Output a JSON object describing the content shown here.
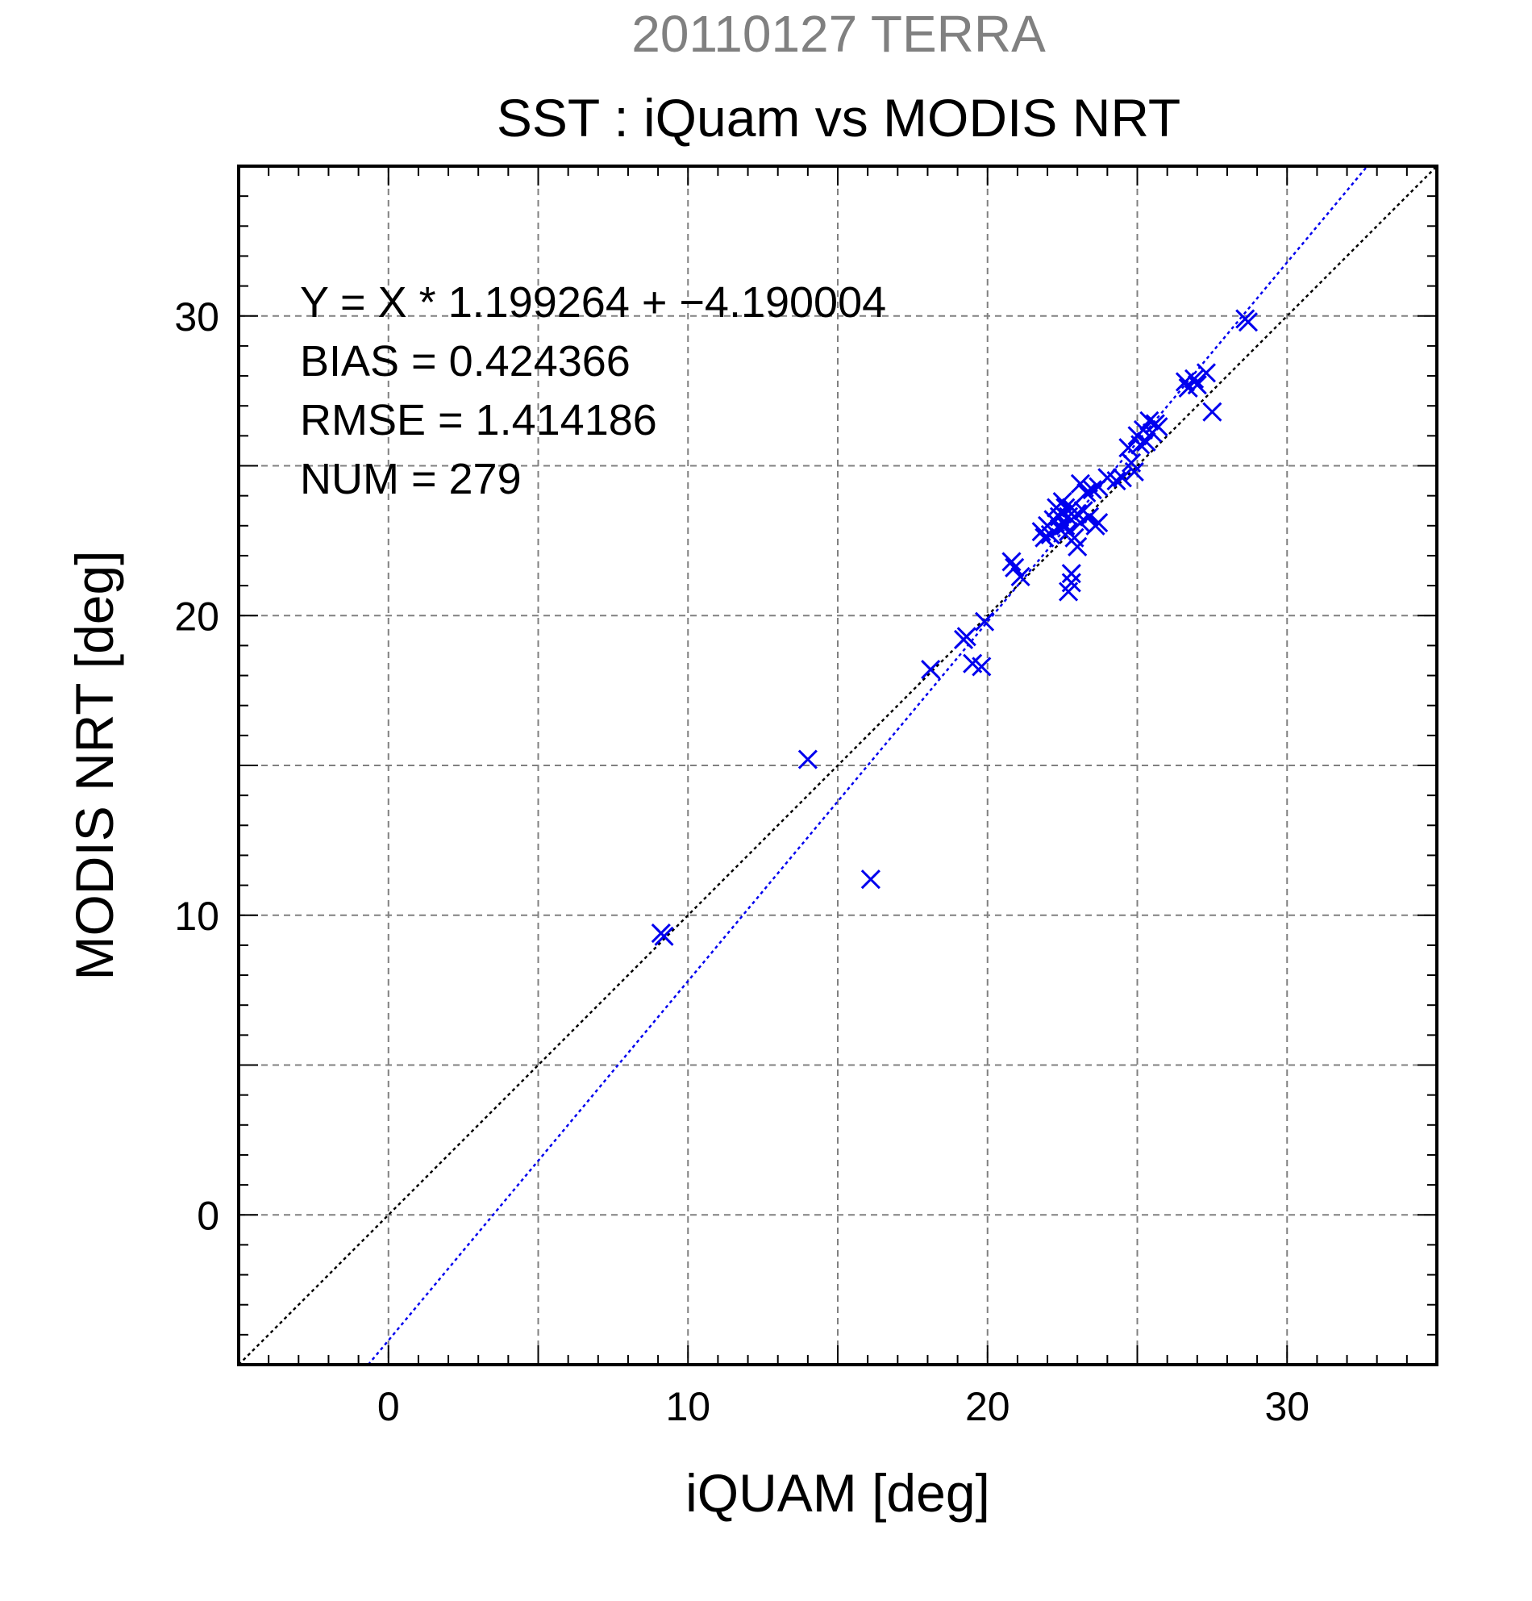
{
  "chart_data": {
    "type": "scatter",
    "suptitle": "20110127 TERRA",
    "title": "SST : iQuam vs MODIS NRT",
    "xlabel": "iQUAM [deg]",
    "ylabel": "MODIS NRT [deg]",
    "xlim": [
      -5,
      35
    ],
    "ylim": [
      -5,
      35
    ],
    "xticks": [
      0,
      10,
      20,
      30
    ],
    "yticks": [
      0,
      10,
      20,
      30
    ],
    "xtick_labels": [
      "0",
      "10",
      "20",
      "30"
    ],
    "ytick_labels": [
      "0",
      "10",
      "20",
      "30"
    ],
    "grid": true,
    "grid_step": 5,
    "minor_tick_step": 1,
    "marker": "x",
    "marker_color": "#0000ee",
    "stats": [
      "Y = X * 1.199264 + −4.190004",
      "BIAS = 0.424366",
      "RMSE = 1.414186",
      "NUM = 279"
    ],
    "lines": [
      {
        "kind": "one-to-one",
        "slope": 1,
        "intercept": 0,
        "color": "#000000",
        "style": "dotted"
      },
      {
        "kind": "regression",
        "slope": 1.199264,
        "intercept": -4.190004,
        "color": "#0000ee",
        "style": "dotted"
      }
    ],
    "x": [
      9.1,
      9.2,
      14.0,
      16.1,
      18.1,
      19.2,
      19.3,
      19.5,
      19.8,
      19.9,
      20.8,
      20.9,
      21.1,
      21.8,
      21.9,
      22.0,
      22.1,
      22.2,
      22.3,
      22.4,
      22.4,
      22.5,
      22.5,
      22.6,
      22.6,
      22.7,
      22.7,
      22.8,
      22.8,
      22.9,
      23.0,
      23.0,
      23.1,
      23.1,
      23.2,
      23.3,
      23.4,
      23.5,
      23.6,
      23.7,
      23.7,
      24.0,
      24.3,
      24.5,
      24.7,
      24.8,
      24.9,
      25.0,
      25.1,
      25.2,
      25.3,
      25.4,
      25.5,
      25.6,
      25.7,
      22.7,
      22.8,
      26.6,
      26.7,
      26.9,
      27.0,
      27.3,
      27.5,
      28.6,
      28.7
    ],
    "y": [
      9.4,
      9.3,
      15.2,
      11.2,
      18.2,
      19.2,
      19.3,
      18.4,
      18.3,
      19.8,
      21.8,
      21.6,
      21.3,
      22.8,
      22.6,
      23.0,
      22.7,
      23.2,
      23.6,
      23.3,
      22.9,
      23.8,
      23.4,
      23.0,
      23.6,
      22.8,
      23.3,
      21.4,
      23.6,
      22.6,
      23.4,
      22.3,
      24.4,
      23.1,
      23.5,
      24.1,
      23.3,
      24.2,
      23.0,
      23.1,
      24.3,
      24.6,
      24.5,
      24.6,
      25.6,
      25.1,
      24.8,
      26.0,
      25.7,
      26.2,
      25.8,
      26.5,
      26.1,
      26.4,
      26.3,
      20.8,
      21.1,
      27.8,
      27.6,
      27.9,
      27.7,
      28.1,
      26.8,
      29.9,
      29.8
    ]
  }
}
